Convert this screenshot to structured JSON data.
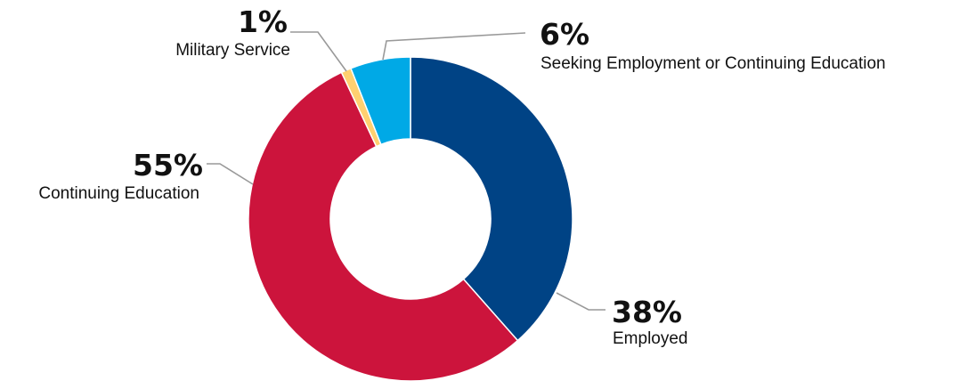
{
  "chart_data": {
    "type": "pie",
    "donut": true,
    "title": "",
    "slices": [
      {
        "label": "Employed",
        "value_label": "38%",
        "value": 38.5,
        "color": "#004385"
      },
      {
        "label": "Continuing Education",
        "value_label": "55%",
        "value": 54.5,
        "color": "#CC143C"
      },
      {
        "label": "Military Service",
        "value_label": "1%",
        "value": 1,
        "color": "#FFD070"
      },
      {
        "label": "Seeking Employment or Continuing Education",
        "value_label": "6%",
        "value": 6,
        "color": "#00A9E6"
      }
    ],
    "legend": "none"
  }
}
